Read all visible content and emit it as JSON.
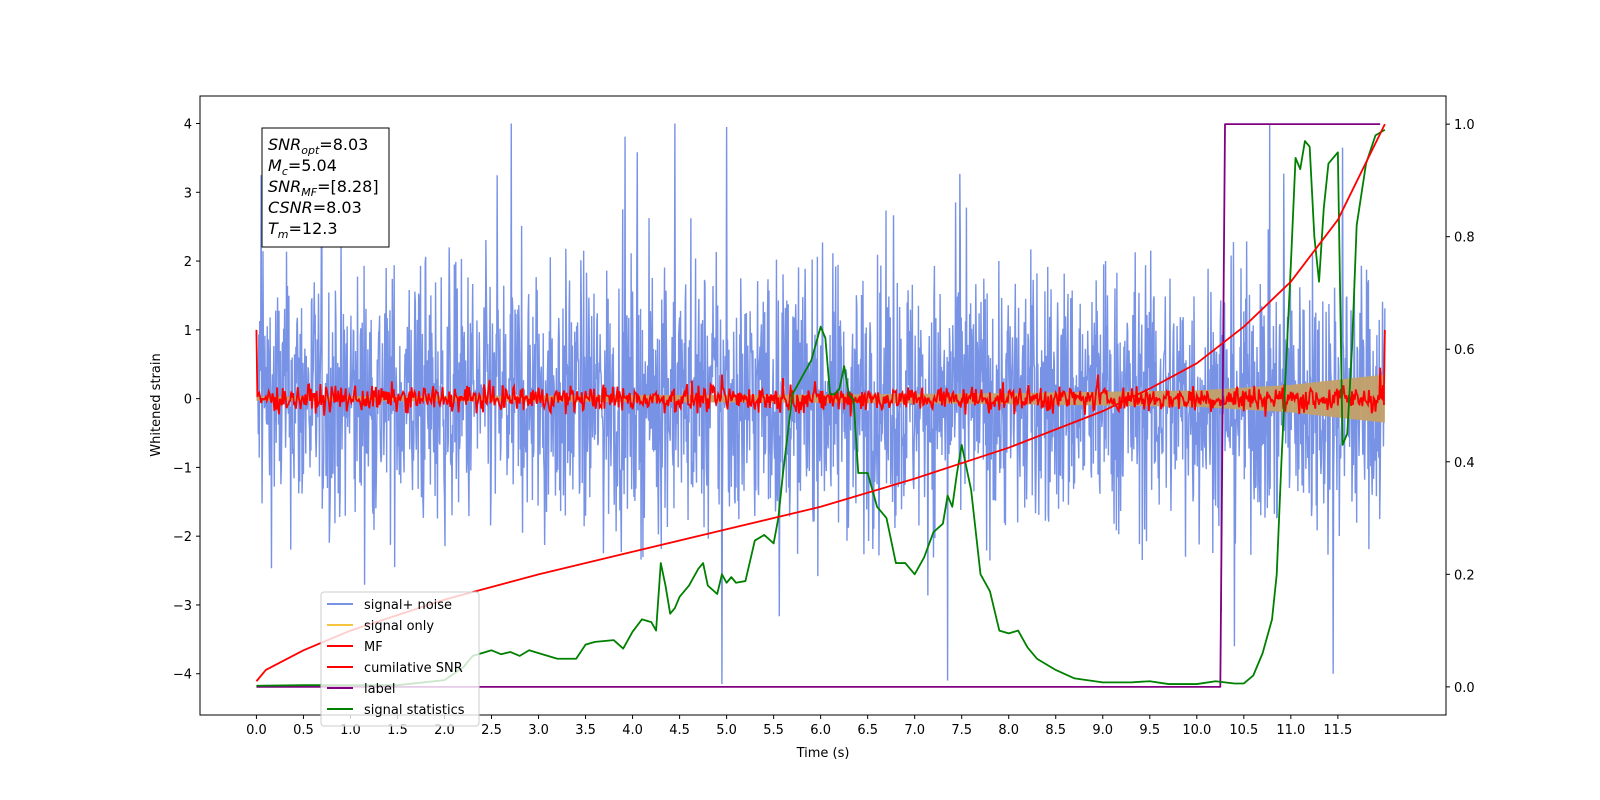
{
  "chart_data": {
    "type": "line",
    "xlabel": "Time (s)",
    "ylabel": "Whitened strain",
    "xlim": [
      -0.6,
      12.65
    ],
    "ylim": [
      -4.6,
      4.4
    ],
    "y2lim": [
      -0.05,
      1.05
    ],
    "xticks": [
      "0.0",
      "0.5",
      "1.0",
      "1.5",
      "2.0",
      "2.5",
      "3.0",
      "3.5",
      "4.0",
      "4.5",
      "5.0",
      "5.5",
      "6.0",
      "6.5",
      "7.0",
      "7.5",
      "8.0",
      "8.5",
      "9.0",
      "9.5",
      "10.0",
      "10.5",
      "11.0",
      "11.5"
    ],
    "yticks": [
      "4",
      "3",
      "2",
      "1",
      "0",
      "−1",
      "−2",
      "−3",
      "−4"
    ],
    "y2ticks": [
      "1.0",
      "0.8",
      "0.6",
      "0.4",
      "0.2",
      "0.0"
    ],
    "grid": false,
    "legend_position": "lower-left",
    "annotation": [
      {
        "var": "SNR",
        "sub": "opt",
        "value": "=8.03"
      },
      {
        "var": "M",
        "sub": "c",
        "value": "=5.04"
      },
      {
        "var": "SNR",
        "sub": "MF",
        "value": "=[8.28]"
      },
      {
        "var": "CSNR",
        "sub": "",
        "value": "=8.03"
      },
      {
        "var": "T",
        "sub": "m",
        "value": "=12.3"
      }
    ],
    "series": [
      {
        "name": "signal+ noise",
        "color": "#7893e6",
        "axis": "left",
        "kind": "noise",
        "x_range": [
          0.0,
          12.0
        ],
        "amplitude_range": [
          -4.1,
          4.0
        ],
        "notable_peaks": [
          [
            0.05,
            3.25
          ],
          [
            4.45,
            4.0
          ],
          [
            5.0,
            3.95
          ],
          [
            4.95,
            -4.15
          ],
          [
            7.35,
            -4.1
          ],
          [
            11.55,
            3.65
          ],
          [
            11.45,
            -4.0
          ],
          [
            10.4,
            -3.6
          ]
        ]
      },
      {
        "name": "signal only",
        "color": "#f5c542",
        "axis": "left",
        "kind": "chirp",
        "x_range": [
          0.0,
          12.0
        ],
        "envelope": [
          [
            0.0,
            0.03
          ],
          [
            6.0,
            0.06
          ],
          [
            8.0,
            0.08
          ],
          [
            10.0,
            0.12
          ],
          [
            11.0,
            0.2
          ],
          [
            12.0,
            0.35
          ]
        ]
      },
      {
        "name": "MF",
        "color": "#ff0000",
        "axis": "left",
        "kind": "noise",
        "x_range": [
          0.0,
          12.0
        ],
        "start_value": 1.0,
        "end_value": 1.0,
        "typical_amplitude": 0.12,
        "notable_peaks": [
          [
            4.95,
            0.35
          ],
          [
            5.6,
            0.3
          ],
          [
            8.95,
            0.35
          ],
          [
            11.95,
            0.45
          ]
        ]
      },
      {
        "name": "cumilative SNR",
        "color": "#ff0000",
        "axis": "right",
        "x": [
          0.0,
          0.1,
          0.5,
          1.0,
          2.0,
          3.0,
          4.0,
          5.0,
          6.0,
          7.0,
          8.0,
          9.0,
          9.5,
          10.0,
          10.5,
          11.0,
          11.5,
          12.0
        ],
        "y": [
          0.01,
          0.03,
          0.065,
          0.1,
          0.155,
          0.2,
          0.24,
          0.28,
          0.32,
          0.37,
          0.425,
          0.49,
          0.53,
          0.575,
          0.64,
          0.72,
          0.83,
          1.0
        ]
      },
      {
        "name": "label",
        "color": "#800080",
        "axis": "right",
        "x": [
          0.0,
          10.25,
          10.25,
          10.3,
          10.3,
          11.95
        ],
        "y": [
          0.0,
          0.0,
          0.0,
          1.0,
          1.0,
          1.0
        ]
      },
      {
        "name": "signal statistics",
        "color": "#008000",
        "axis": "right",
        "x": [
          0.0,
          0.5,
          1.0,
          1.5,
          2.0,
          2.2,
          2.3,
          2.5,
          2.6,
          2.7,
          2.8,
          2.9,
          3.0,
          3.2,
          3.4,
          3.5,
          3.6,
          3.8,
          3.9,
          4.0,
          4.1,
          4.2,
          4.25,
          4.3,
          4.35,
          4.4,
          4.45,
          4.5,
          4.6,
          4.7,
          4.75,
          4.8,
          4.9,
          4.95,
          5.0,
          5.05,
          5.1,
          5.2,
          5.3,
          5.4,
          5.5,
          5.55,
          5.6,
          5.7,
          5.8,
          5.9,
          6.0,
          6.05,
          6.1,
          6.15,
          6.2,
          6.25,
          6.3,
          6.35,
          6.4,
          6.5,
          6.6,
          6.7,
          6.8,
          6.9,
          7.0,
          7.1,
          7.2,
          7.3,
          7.35,
          7.4,
          7.45,
          7.5,
          7.55,
          7.6,
          7.7,
          7.8,
          7.9,
          8.0,
          8.1,
          8.2,
          8.3,
          8.5,
          8.7,
          9.0,
          9.3,
          9.5,
          9.7,
          10.0,
          10.2,
          10.4,
          10.5,
          10.6,
          10.7,
          10.8,
          10.85,
          10.9,
          11.0,
          11.05,
          11.1,
          11.15,
          11.2,
          11.25,
          11.3,
          11.35,
          11.4,
          11.5,
          11.55,
          11.6,
          11.65,
          11.7,
          11.8,
          11.9,
          12.0
        ],
        "y": [
          0.002,
          0.003,
          0.003,
          0.003,
          0.012,
          0.035,
          0.055,
          0.065,
          0.058,
          0.062,
          0.055,
          0.065,
          0.06,
          0.05,
          0.05,
          0.075,
          0.08,
          0.083,
          0.068,
          0.098,
          0.12,
          0.115,
          0.1,
          0.22,
          0.18,
          0.13,
          0.14,
          0.16,
          0.18,
          0.21,
          0.22,
          0.18,
          0.165,
          0.2,
          0.185,
          0.195,
          0.185,
          0.188,
          0.26,
          0.27,
          0.255,
          0.3,
          0.38,
          0.52,
          0.55,
          0.58,
          0.64,
          0.62,
          0.52,
          0.52,
          0.53,
          0.57,
          0.52,
          0.51,
          0.38,
          0.38,
          0.32,
          0.3,
          0.22,
          0.22,
          0.2,
          0.23,
          0.275,
          0.29,
          0.34,
          0.32,
          0.38,
          0.43,
          0.39,
          0.35,
          0.2,
          0.17,
          0.1,
          0.095,
          0.1,
          0.07,
          0.05,
          0.03,
          0.015,
          0.008,
          0.008,
          0.01,
          0.005,
          0.005,
          0.01,
          0.006,
          0.006,
          0.02,
          0.06,
          0.12,
          0.2,
          0.4,
          0.75,
          0.94,
          0.92,
          0.97,
          0.96,
          0.8,
          0.72,
          0.85,
          0.93,
          0.95,
          0.43,
          0.45,
          0.6,
          0.82,
          0.93,
          0.98,
          0.99
        ]
      }
    ]
  }
}
